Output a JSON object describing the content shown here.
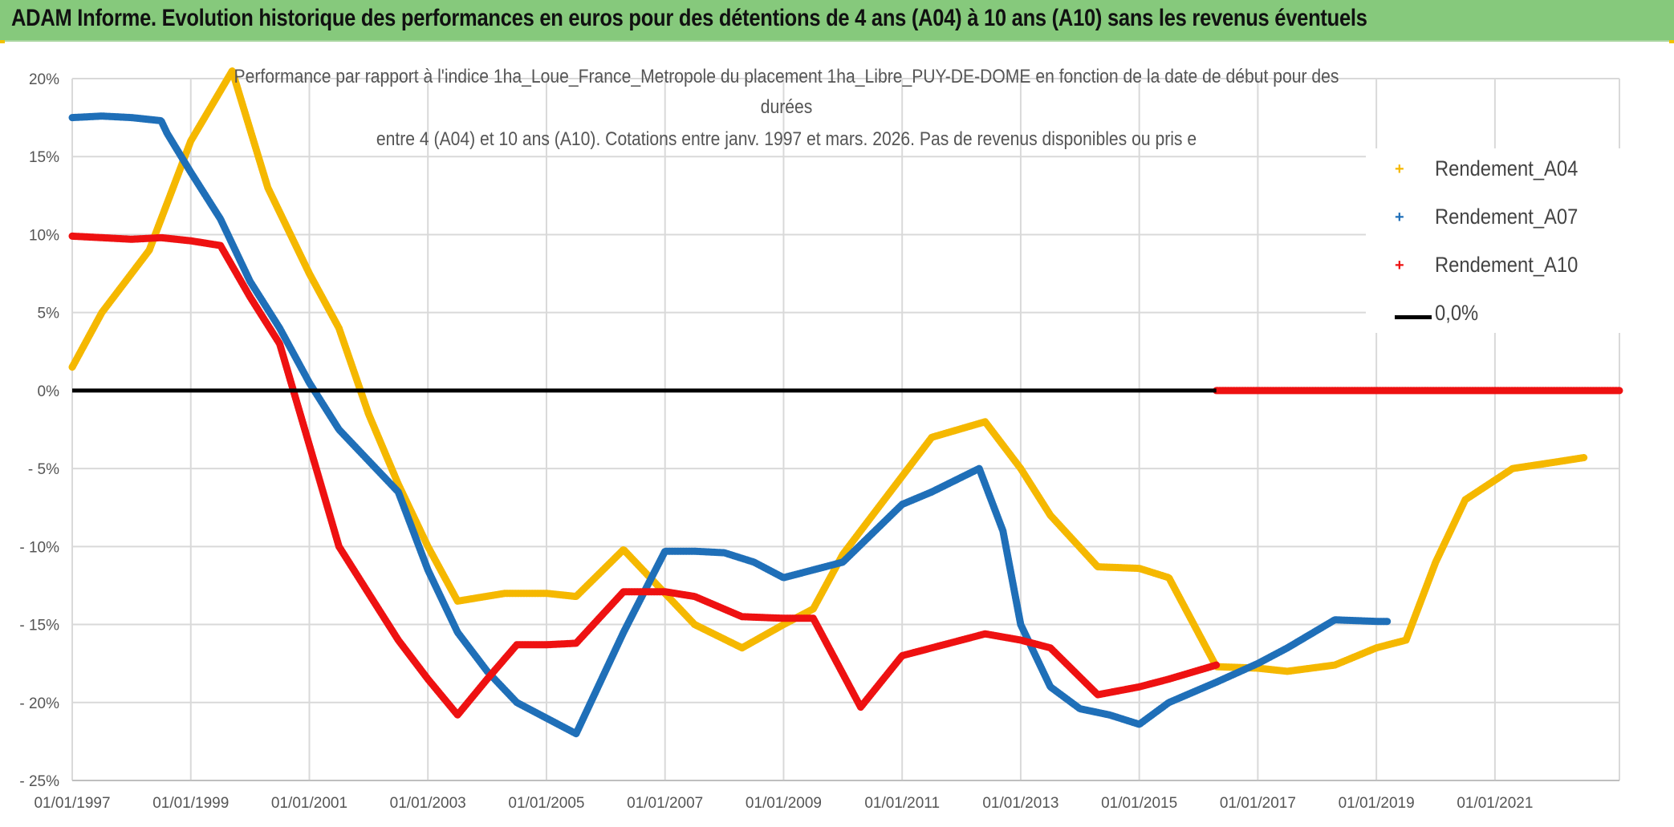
{
  "header": {
    "title": "ADAM Informe. Evolution historique des performances en euros pour des détentions de 4 ans (A04) à 10 ans (A10) sans les revenus éventuels"
  },
  "colors": {
    "banner": "#86c97c",
    "a04": "#f5b800",
    "a07": "#1f6fb8",
    "a10": "#ee1111",
    "zero": "#000000",
    "grid": "#d9d9d9"
  },
  "chart_data": {
    "type": "line",
    "title_lines": [
      "Performance par rapport à l'indice 1ha_Loue_France_Metropole  du placement 1ha_Libre_PUY-DE-DOME en fonction de la date de début pour des",
      "durées",
      "entre 4 (A04) et 10 ans (A10). Cotations entre janv. 1997 et mars. 2026. Pas de revenus disponibles ou pris e"
    ],
    "x_ticks": [
      "01/01/1997",
      "01/01/1999",
      "01/01/2001",
      "01/01/2003",
      "01/01/2005",
      "01/01/2007",
      "01/01/2009",
      "01/01/2011",
      "01/01/2013",
      "01/01/2015",
      "01/01/2017",
      "01/01/2019",
      "01/01/2021"
    ],
    "y_ticks": [
      "20%",
      "15%",
      "10%",
      "5%",
      "0%",
      "- 5%",
      "- 10%",
      "- 15%",
      "- 20%",
      "- 25%"
    ],
    "xlim": [
      1997.0,
      2023.1
    ],
    "ylim": [
      -25,
      20
    ],
    "series": [
      {
        "name": "Rendement_A04",
        "color_key": "a04",
        "points": [
          [
            1997.0,
            1.5
          ],
          [
            1997.5,
            5.0
          ],
          [
            1998.3,
            9.0
          ],
          [
            1998.8,
            14.0
          ],
          [
            1999.0,
            16.0
          ],
          [
            1999.7,
            20.5
          ],
          [
            2000.3,
            13.0
          ],
          [
            2001.0,
            7.5
          ],
          [
            2001.5,
            4.0
          ],
          [
            2002.0,
            -1.5
          ],
          [
            2002.5,
            -6.0
          ],
          [
            2003.0,
            -10.0
          ],
          [
            2003.5,
            -13.5
          ],
          [
            2004.3,
            -13.0
          ],
          [
            2005.0,
            -13.0
          ],
          [
            2005.5,
            -13.2
          ],
          [
            2006.3,
            -10.2
          ],
          [
            2007.0,
            -13.0
          ],
          [
            2007.5,
            -15.0
          ],
          [
            2008.3,
            -16.5
          ],
          [
            2009.0,
            -15.0
          ],
          [
            2009.5,
            -14.0
          ],
          [
            2010.0,
            -10.5
          ],
          [
            2010.5,
            -8.0
          ],
          [
            2011.5,
            -3.0
          ],
          [
            2012.4,
            -2.0
          ],
          [
            2013.0,
            -5.0
          ],
          [
            2013.5,
            -8.0
          ],
          [
            2014.3,
            -11.3
          ],
          [
            2015.0,
            -11.4
          ],
          [
            2015.5,
            -12.0
          ],
          [
            2016.3,
            -17.7
          ],
          [
            2017.0,
            -17.8
          ],
          [
            2017.5,
            -18.0
          ],
          [
            2018.3,
            -17.6
          ],
          [
            2019.0,
            -16.5
          ],
          [
            2019.5,
            -16.0
          ],
          [
            2020.0,
            -11.0
          ],
          [
            2020.5,
            -7.0
          ],
          [
            2021.3,
            -5.0
          ],
          [
            2022.0,
            -4.6
          ],
          [
            2022.5,
            -4.3
          ]
        ]
      },
      {
        "name": "Rendement_A07",
        "color_key": "a07",
        "points": [
          [
            1997.0,
            17.5
          ],
          [
            1997.5,
            17.6
          ],
          [
            1998.0,
            17.5
          ],
          [
            1998.5,
            17.3
          ],
          [
            1998.6,
            16.5
          ],
          [
            1999.0,
            14.0
          ],
          [
            1999.5,
            11.0
          ],
          [
            2000.0,
            7.0
          ],
          [
            2000.5,
            4.0
          ],
          [
            2001.0,
            0.5
          ],
          [
            2001.5,
            -2.5
          ],
          [
            2002.0,
            -4.5
          ],
          [
            2002.5,
            -6.5
          ],
          [
            2003.0,
            -11.5
          ],
          [
            2003.5,
            -15.5
          ],
          [
            2004.0,
            -18.0
          ],
          [
            2004.5,
            -20.0
          ],
          [
            2005.5,
            -22.0
          ],
          [
            2006.3,
            -15.5
          ],
          [
            2007.0,
            -10.3
          ],
          [
            2007.5,
            -10.3
          ],
          [
            2008.0,
            -10.4
          ],
          [
            2008.5,
            -11.0
          ],
          [
            2009.0,
            -12.0
          ],
          [
            2009.5,
            -11.5
          ],
          [
            2010.0,
            -11.0
          ],
          [
            2011.0,
            -7.3
          ],
          [
            2011.5,
            -6.5
          ],
          [
            2012.3,
            -5.0
          ],
          [
            2012.7,
            -9.0
          ],
          [
            2013.0,
            -15.0
          ],
          [
            2013.5,
            -19.0
          ],
          [
            2014.0,
            -20.4
          ],
          [
            2014.5,
            -20.8
          ],
          [
            2015.0,
            -21.4
          ],
          [
            2015.5,
            -20.0
          ],
          [
            2016.3,
            -18.7
          ],
          [
            2017.0,
            -17.5
          ],
          [
            2017.5,
            -16.5
          ],
          [
            2018.3,
            -14.7
          ],
          [
            2019.0,
            -14.8
          ],
          [
            2019.2,
            -14.8
          ]
        ]
      },
      {
        "name": "Rendement_A10",
        "color_key": "a10",
        "points": [
          [
            1997.0,
            9.9
          ],
          [
            1997.5,
            9.8
          ],
          [
            1998.0,
            9.7
          ],
          [
            1998.5,
            9.8
          ],
          [
            1999.0,
            9.6
          ],
          [
            1999.5,
            9.3
          ],
          [
            2000.0,
            6.0
          ],
          [
            2000.5,
            3.0
          ],
          [
            2001.0,
            -3.5
          ],
          [
            2001.5,
            -10.0
          ],
          [
            2002.0,
            -13.0
          ],
          [
            2002.5,
            -16.0
          ],
          [
            2003.0,
            -18.5
          ],
          [
            2003.5,
            -20.8
          ],
          [
            2004.0,
            -18.5
          ],
          [
            2004.5,
            -16.3
          ],
          [
            2005.0,
            -16.3
          ],
          [
            2005.5,
            -16.2
          ],
          [
            2006.3,
            -12.9
          ],
          [
            2007.0,
            -12.9
          ],
          [
            2007.5,
            -13.2
          ],
          [
            2008.3,
            -14.5
          ],
          [
            2009.0,
            -14.6
          ],
          [
            2009.5,
            -14.6
          ],
          [
            2010.3,
            -20.3
          ],
          [
            2011.0,
            -17.0
          ],
          [
            2011.5,
            -16.5
          ],
          [
            2012.4,
            -15.6
          ],
          [
            2013.0,
            -16.0
          ],
          [
            2013.5,
            -16.5
          ],
          [
            2014.3,
            -19.5
          ],
          [
            2015.0,
            -19.0
          ],
          [
            2015.5,
            -18.5
          ],
          [
            2016.3,
            -17.6
          ]
        ]
      },
      {
        "name": "Rendement_A10_zero_tail",
        "color_key": "a10",
        "points": [
          [
            2016.3,
            0.0
          ],
          [
            2023.1,
            0.0
          ]
        ]
      }
    ],
    "zero_line": {
      "name": "0,0%",
      "value": 0
    },
    "legend": [
      {
        "label": "Rendement_A04",
        "color_key": "a04",
        "marker": "+"
      },
      {
        "label": "Rendement_A07",
        "color_key": "a07",
        "marker": "+"
      },
      {
        "label": "Rendement_A10",
        "color_key": "a10",
        "marker": "+"
      },
      {
        "label": "0,0%",
        "color_key": "zero",
        "marker": "line"
      }
    ]
  }
}
